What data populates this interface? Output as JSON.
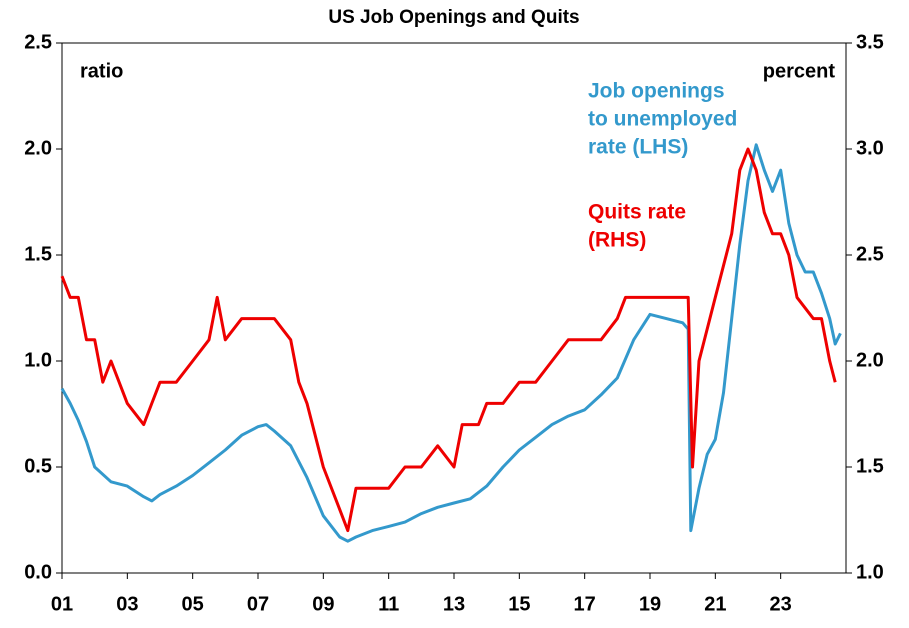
{
  "chart_data": {
    "type": "line",
    "title": "US Job Openings and Quits",
    "xlim": [
      2001,
      2025
    ],
    "xticks": [
      {
        "value": 2001,
        "label": "01"
      },
      {
        "value": 2003,
        "label": "03"
      },
      {
        "value": 2005,
        "label": "05"
      },
      {
        "value": 2007,
        "label": "07"
      },
      {
        "value": 2009,
        "label": "09"
      },
      {
        "value": 2011,
        "label": "11"
      },
      {
        "value": 2013,
        "label": "13"
      },
      {
        "value": 2015,
        "label": "15"
      },
      {
        "value": 2017,
        "label": "17"
      },
      {
        "value": 2019,
        "label": "19"
      },
      {
        "value": 2021,
        "label": "21"
      },
      {
        "value": 2023,
        "label": "23"
      }
    ],
    "ylim": [
      0,
      2.5
    ],
    "yticks": [
      {
        "value": 0,
        "label": "0.0"
      },
      0.5,
      {
        "value": 1,
        "label": "1.0"
      },
      1.5,
      {
        "value": 2,
        "label": "2.0"
      },
      2.5
    ],
    "y2lim": [
      1,
      3.5
    ],
    "y2ticks": [
      {
        "value": 1,
        "label": "1.0"
      },
      1.5,
      {
        "value": 2,
        "label": "2.0"
      },
      2.5,
      {
        "value": 3,
        "label": "3.0"
      },
      3.5
    ],
    "ylabel": "ratio",
    "y2label": "percent",
    "series": [
      {
        "name": [
          "Job openings",
          "to unemployed",
          "rate (LHS)"
        ],
        "color": "#3399cc",
        "axis": "y",
        "x": [
          2001.0,
          2001.25,
          2001.5,
          2001.75,
          2002.0,
          2002.5,
          2003.0,
          2003.5,
          2003.75,
          2004.0,
          2004.5,
          2005.0,
          2005.5,
          2006.0,
          2006.5,
          2007.0,
          2007.25,
          2007.5,
          2008.0,
          2008.5,
          2009.0,
          2009.5,
          2009.75,
          2010.0,
          2010.5,
          2011.0,
          2011.5,
          2012.0,
          2012.5,
          2013.0,
          2013.5,
          2014.0,
          2014.5,
          2015.0,
          2015.5,
          2016.0,
          2016.5,
          2017.0,
          2017.5,
          2018.0,
          2018.5,
          2019.0,
          2019.5,
          2020.0,
          2020.17,
          2020.25,
          2020.5,
          2020.75,
          2021.0,
          2021.25,
          2021.5,
          2021.75,
          2022.0,
          2022.25,
          2022.5,
          2022.75,
          2023.0,
          2023.25,
          2023.5,
          2023.75,
          2024.0,
          2024.25,
          2024.5,
          2024.67,
          2024.83
        ],
        "values": [
          0.87,
          0.8,
          0.72,
          0.62,
          0.5,
          0.43,
          0.41,
          0.36,
          0.34,
          0.37,
          0.41,
          0.46,
          0.52,
          0.58,
          0.65,
          0.69,
          0.7,
          0.67,
          0.6,
          0.45,
          0.27,
          0.17,
          0.15,
          0.17,
          0.2,
          0.22,
          0.24,
          0.28,
          0.31,
          0.33,
          0.35,
          0.41,
          0.5,
          0.58,
          0.64,
          0.7,
          0.74,
          0.77,
          0.84,
          0.92,
          1.1,
          1.22,
          1.2,
          1.18,
          1.15,
          0.2,
          0.4,
          0.56,
          0.63,
          0.85,
          1.2,
          1.55,
          1.85,
          2.02,
          1.9,
          1.8,
          1.9,
          1.65,
          1.5,
          1.42,
          1.42,
          1.32,
          1.2,
          1.08,
          1.13
        ]
      },
      {
        "name": [
          "Quits rate",
          "(RHS)"
        ],
        "color": "#ee0000",
        "axis": "y2",
        "x": [
          2001.0,
          2001.25,
          2001.5,
          2001.75,
          2002.0,
          2002.25,
          2002.5,
          2003.0,
          2003.5,
          2003.75,
          2004.0,
          2004.5,
          2005.0,
          2005.5,
          2005.75,
          2006.0,
          2006.5,
          2007.0,
          2007.5,
          2008.0,
          2008.25,
          2008.5,
          2009.0,
          2009.5,
          2009.75,
          2010.0,
          2010.5,
          2011.0,
          2011.5,
          2012.0,
          2012.5,
          2013.0,
          2013.25,
          2013.75,
          2014.0,
          2014.5,
          2015.0,
          2015.5,
          2016.0,
          2016.5,
          2017.0,
          2017.5,
          2018.0,
          2018.25,
          2019.0,
          2019.5,
          2020.0,
          2020.17,
          2020.3,
          2020.5,
          2021.0,
          2021.5,
          2021.75,
          2022.0,
          2022.25,
          2022.5,
          2022.75,
          2023.0,
          2023.25,
          2023.5,
          2024.0,
          2024.25,
          2024.5,
          2024.67
        ],
        "values": [
          2.4,
          2.3,
          2.3,
          2.1,
          2.1,
          1.9,
          2.0,
          1.8,
          1.7,
          1.8,
          1.9,
          1.9,
          2.0,
          2.1,
          2.3,
          2.1,
          2.2,
          2.2,
          2.2,
          2.1,
          1.9,
          1.8,
          1.5,
          1.3,
          1.2,
          1.4,
          1.4,
          1.4,
          1.5,
          1.5,
          1.6,
          1.5,
          1.7,
          1.7,
          1.8,
          1.8,
          1.9,
          1.9,
          2.0,
          2.1,
          2.1,
          2.1,
          2.2,
          2.3,
          2.3,
          2.3,
          2.3,
          2.3,
          1.5,
          2.0,
          2.3,
          2.6,
          2.9,
          3.0,
          2.9,
          2.7,
          2.6,
          2.6,
          2.5,
          2.3,
          2.2,
          2.2,
          2.0,
          1.9
        ]
      }
    ]
  }
}
